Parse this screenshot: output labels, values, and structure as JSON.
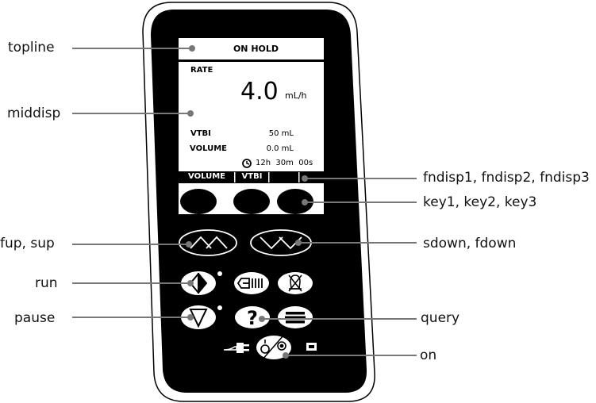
{
  "labels": {
    "topline": "topline",
    "middisp": "middisp",
    "fup_sup": "fup, sup",
    "run": "run",
    "pause": "pause",
    "fndisp": "fndisp1, fndisp2, fndisp3",
    "keys": "key1, key2, key3",
    "sdown_fdown": "sdown, fdown",
    "query": "query",
    "on": "on"
  },
  "screen": {
    "status": "ON HOLD",
    "rate_label": "RATE",
    "rate_value": "4.0",
    "rate_unit": "mL/h",
    "vtbi_label": "VTBI",
    "vtbi_value": "50 mL",
    "volume_label": "VOLUME",
    "volume_value": "0.0 mL",
    "time_value": "12h  30m  00s",
    "fn1": "VOLUME",
    "fn2": "VTBI",
    "fn3": ""
  },
  "icons": {
    "time": "clock-icon",
    "fup_sup": "double-up-chevron-icon",
    "sdown_fdown": "double-down-chevron-icon",
    "run": "run-diamond-icon",
    "pause": "pause-triangle-icon",
    "bolus": "bolus-icon",
    "silence": "alarm-silence-icon",
    "query": "question-mark-icon",
    "menu": "menu-lines-icon",
    "power": "mains-plug-icon",
    "on": "on-off-icon",
    "battery": "battery-icon"
  },
  "colors": {
    "body": "#000000",
    "screen": "#ffffff",
    "leader": "#777777"
  }
}
